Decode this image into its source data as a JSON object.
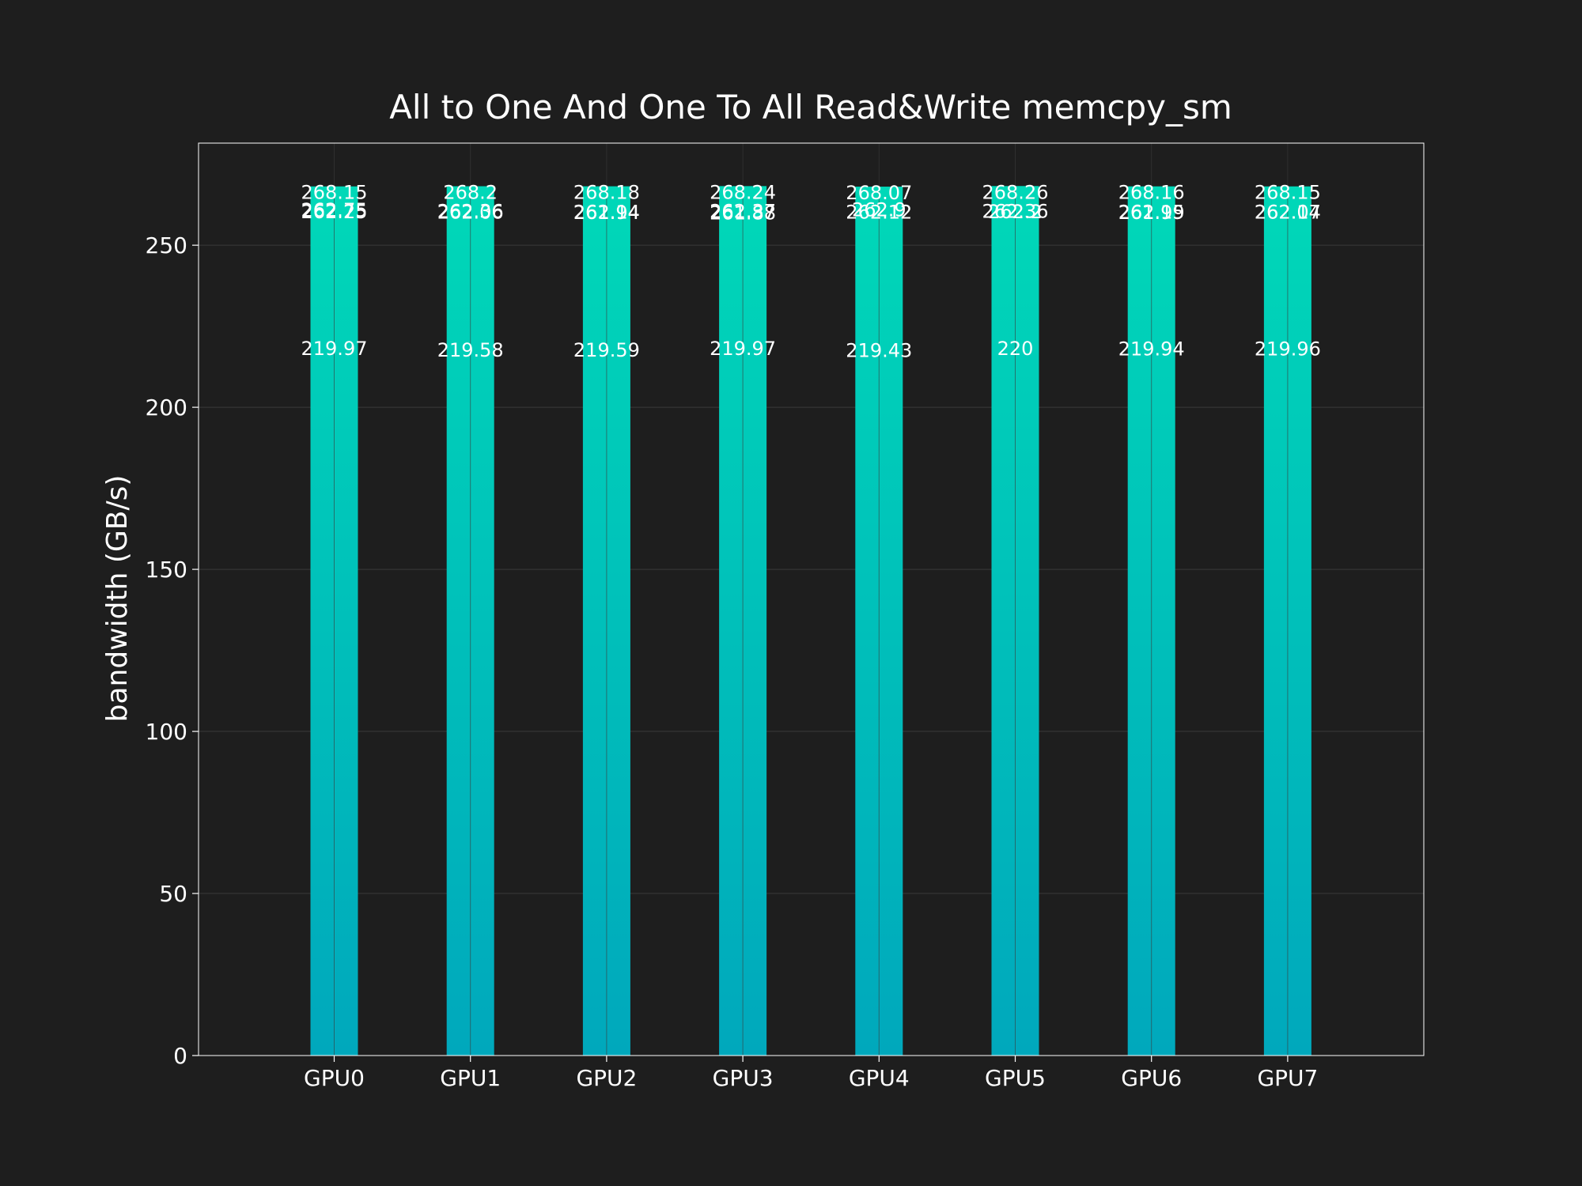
{
  "chart_data": {
    "type": "bar",
    "title": "All to One And One To All Read&Write memcpy_sm",
    "xlabel": "",
    "ylabel": "bandwidth (GB/s)",
    "ylim": [
      0,
      281.5
    ],
    "yticks": [
      0,
      50,
      100,
      150,
      200,
      250
    ],
    "grid": true,
    "categories": [
      "GPU0",
      "GPU1",
      "GPU2",
      "GPU3",
      "GPU4",
      "GPU5",
      "GPU6",
      "GPU7"
    ],
    "series": [
      {
        "values": [
          262.75,
          262.36,
          261.94,
          262.37,
          262.9,
          262.36,
          261.99,
          262.07
        ]
      },
      {
        "values": [
          262.25,
          262.06,
          262.14,
          261.88,
          262.12,
          262.2,
          262.15,
          262.14
        ]
      },
      {
        "values": [
          268.15,
          268.2,
          268.18,
          268.24,
          268.07,
          268.26,
          268.16,
          268.15
        ]
      },
      {
        "values": [
          219.97,
          219.58,
          219.59,
          219.97,
          219.43,
          220,
          219.94,
          219.96
        ]
      }
    ],
    "colors": {
      "background": "#1e1e1e",
      "bar_top": "#00d8b8",
      "bar_bottom": "#00a8bc",
      "text": "#ffffff",
      "grid": "#3a3a3a",
      "frame": "#ffffff"
    }
  }
}
